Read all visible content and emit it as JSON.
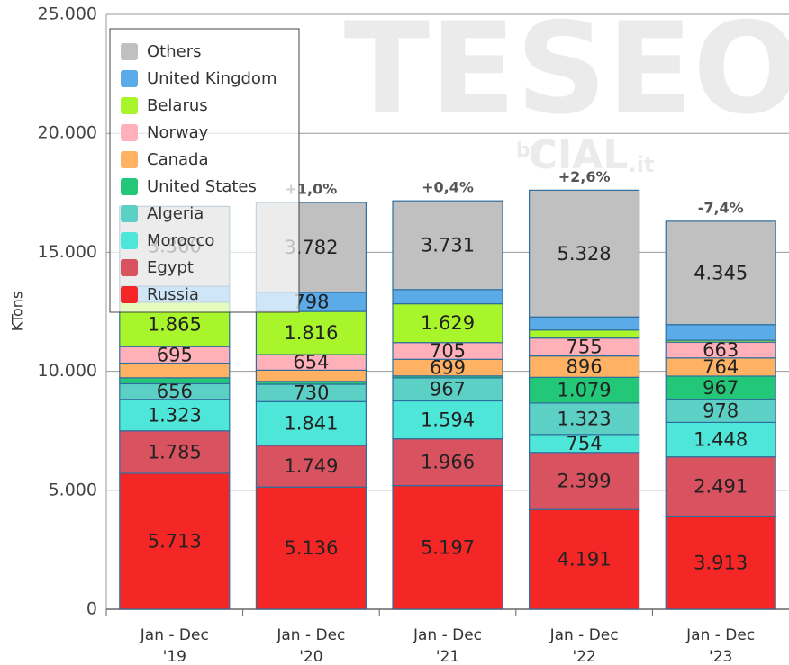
{
  "chart_data": {
    "type": "stacked_bar",
    "y_label": "KTons",
    "watermark": {
      "title": "TESEO",
      "by": "by",
      "brand": "CIAL",
      "suffix": ".it"
    },
    "categories": [
      "Jan - Dec '19",
      "Jan - Dec '20",
      "Jan - Dec '21",
      "Jan - Dec '22",
      "Jan - Dec '23"
    ],
    "annotations": [
      null,
      "+1,0%",
      "+0,4%",
      "+2,6%",
      "-7,4%"
    ],
    "ylim": [
      0,
      25000
    ],
    "yticks": [
      0,
      {
        "value": 5000,
        "label": "5.000"
      },
      {
        "value": 10000,
        "label": "10.000"
      },
      {
        "value": 15000,
        "label": "15.000"
      },
      {
        "value": 20000,
        "label": "20.000"
      },
      {
        "value": 25000,
        "label": "25.000"
      }
    ],
    "grid": true,
    "legend": "top-left",
    "series": [
      {
        "name": "Russia",
        "color": "#f42626",
        "values": [
          5713,
          5136,
          5197,
          4191,
          3913
        ],
        "value_labels": [
          "5.713",
          "5.136",
          "5.197",
          "4.191",
          "3.913"
        ]
      },
      {
        "name": "Egypt",
        "color": "#d9525f",
        "values": [
          1785,
          1749,
          1966,
          2399,
          2491
        ],
        "value_labels": [
          "1.785",
          "1.749",
          "1.966",
          "2.399",
          "2.491"
        ]
      },
      {
        "name": "Morocco",
        "color": "#4ee6d8",
        "values": [
          1323,
          1841,
          1594,
          754,
          1448
        ],
        "value_labels": [
          "1.323",
          "1.841",
          "1.594",
          "754",
          "1.448"
        ]
      },
      {
        "name": "Algeria",
        "color": "#5dd0c6",
        "values": [
          656,
          730,
          967,
          1323,
          978
        ],
        "value_labels": [
          "656",
          "730",
          "967",
          "1.323",
          "978"
        ]
      },
      {
        "name": "United States",
        "color": "#22c777",
        "values": [
          250,
          120,
          80,
          1079,
          967
        ],
        "value_labels": [
          null,
          null,
          null,
          "1.079",
          "967"
        ]
      },
      {
        "name": "Canada",
        "color": "#ffb264",
        "values": [
          615,
          470,
          699,
          896,
          764
        ],
        "value_labels": [
          null,
          null,
          "699",
          "896",
          "764"
        ]
      },
      {
        "name": "Norway",
        "color": "#ffb0b8",
        "values": [
          695,
          654,
          705,
          755,
          663
        ],
        "value_labels": [
          "695",
          "654",
          "705",
          "755",
          "663"
        ]
      },
      {
        "name": "Belarus",
        "color": "#a9f52b",
        "values": [
          1865,
          1816,
          1629,
          340,
          80
        ],
        "value_labels": [
          "1.865",
          "1.816",
          "1.629",
          null,
          null
        ]
      },
      {
        "name": "United Kingdom",
        "color": "#5aabe8",
        "values": [
          670,
          798,
          596,
          545,
          658
        ],
        "value_labels": [
          null,
          "798",
          null,
          null,
          null
        ]
      },
      {
        "name": "Others",
        "color": "#c0c0c0",
        "values": [
          3360,
          3782,
          3731,
          5328,
          4345
        ],
        "value_labels": [
          "3.360",
          "3.782",
          "3.731",
          "5.328",
          "4.345"
        ]
      }
    ]
  }
}
